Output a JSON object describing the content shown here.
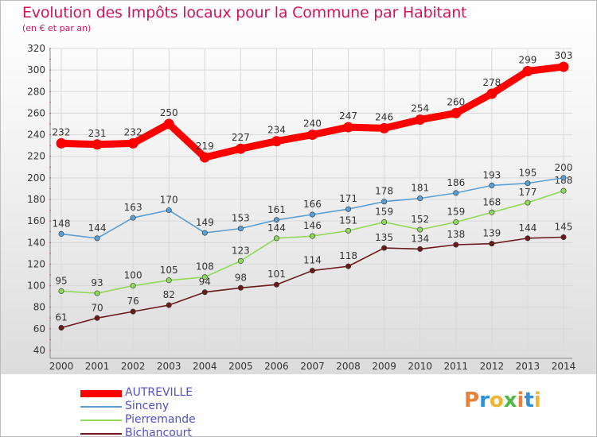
{
  "header": {
    "title": "Evolution des Impôts locaux pour la Commune par Habitant",
    "subtitle": "(en € et par an)"
  },
  "brand": {
    "text": "Proxiti",
    "letter_colors": [
      "#e8813a",
      "#2f8fd8",
      "#f3b531",
      "#52b848",
      "#e8813a",
      "#2f8fd8",
      "#f3b531"
    ]
  },
  "chart_data": {
    "type": "line",
    "title": "Evolution des Impôts locaux pour la Commune par Habitant",
    "subtitle": "(en € et par an)",
    "xlabel": "",
    "ylabel": "",
    "categories": [
      "2000",
      "2001",
      "2002",
      "2003",
      "2004",
      "2005",
      "2006",
      "2007",
      "2008",
      "2009",
      "2010",
      "2011",
      "2012",
      "2013",
      "2014"
    ],
    "ylim": [
      40,
      320
    ],
    "yticks": [
      40,
      60,
      80,
      100,
      120,
      140,
      160,
      180,
      200,
      220,
      240,
      260,
      280,
      300,
      320
    ],
    "grid": true,
    "legend_position": "bottom-left",
    "series": [
      {
        "name": "AUTREVILLE",
        "color": "#ff0000",
        "values": [
          232,
          231,
          232,
          250,
          219,
          227,
          234,
          240,
          247,
          246,
          254,
          260,
          278,
          299,
          303
        ]
      },
      {
        "name": "Sinceny",
        "color": "#5a9fd4",
        "values": [
          148,
          144,
          163,
          170,
          149,
          153,
          161,
          166,
          171,
          178,
          181,
          186,
          193,
          195,
          200
        ]
      },
      {
        "name": "Pierremande",
        "color": "#90d85a",
        "values": [
          95,
          93,
          100,
          105,
          108,
          123,
          144,
          146,
          151,
          159,
          152,
          159,
          168,
          177,
          188
        ]
      },
      {
        "name": "Bichancourt",
        "color": "#6b1a1a",
        "values": [
          61,
          70,
          76,
          82,
          94,
          98,
          101,
          114,
          118,
          135,
          134,
          138,
          139,
          144,
          145
        ]
      }
    ]
  }
}
